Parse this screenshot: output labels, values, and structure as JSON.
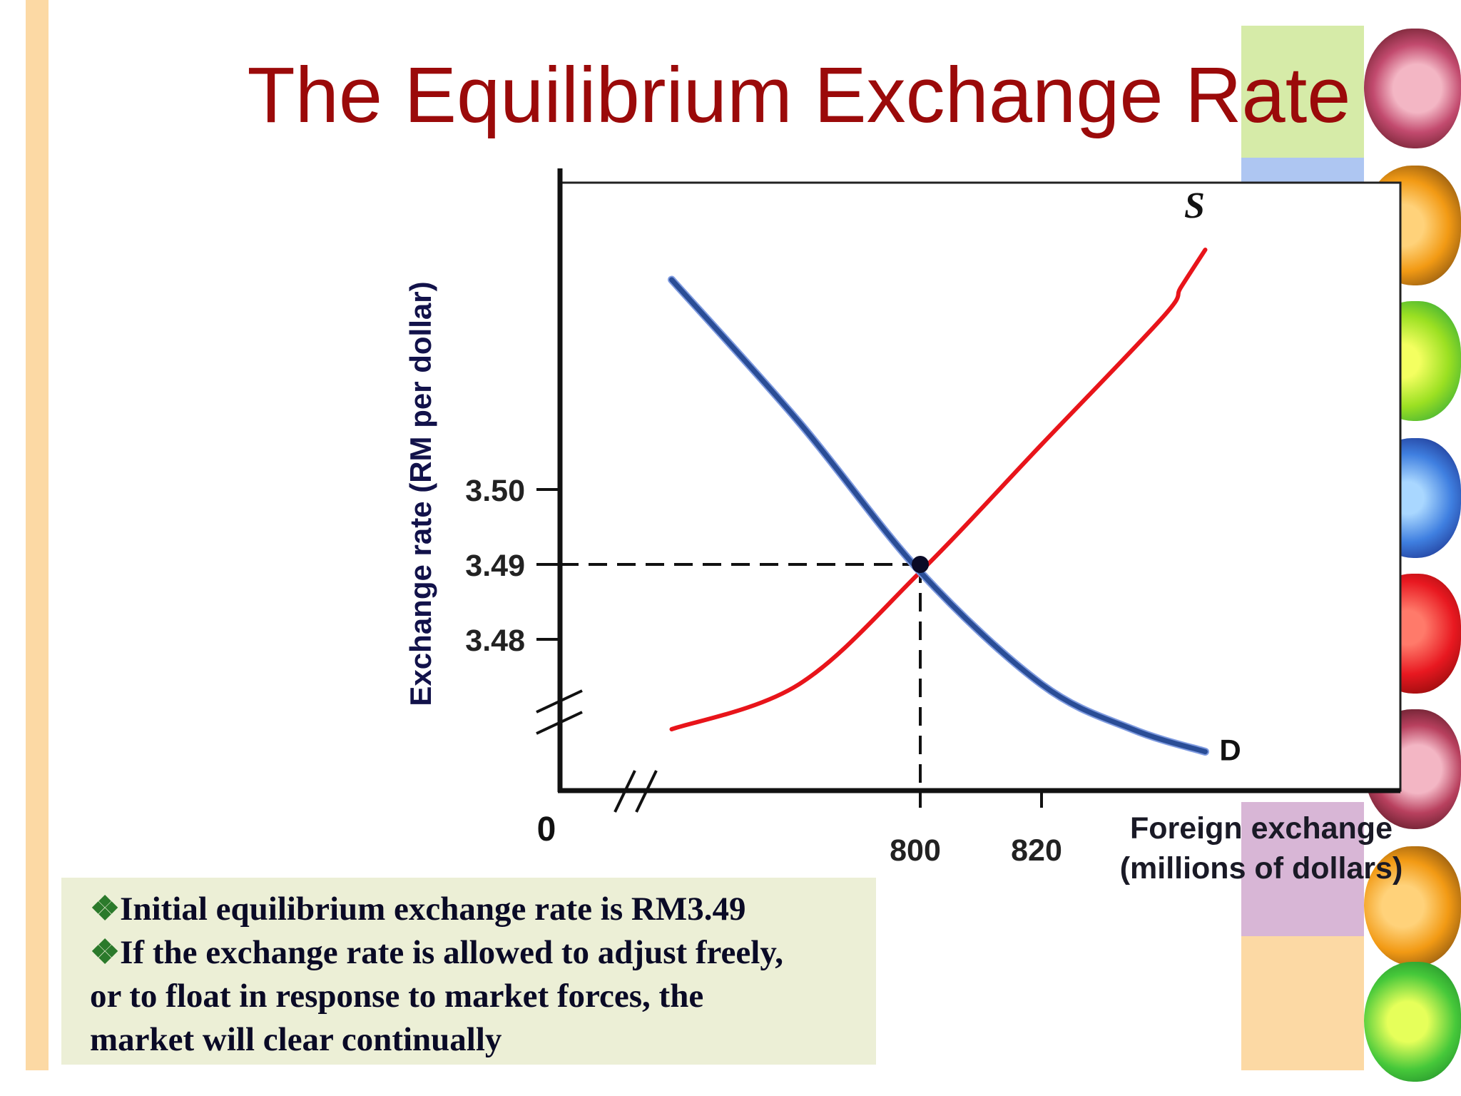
{
  "slide": {
    "title": "The Equilibrium Exchange Rate"
  },
  "chart_data": {
    "type": "line",
    "xlabel_lines": [
      "Foreign exchange",
      "(millions of dollars)"
    ],
    "ylabel": "Exchange rate (RM per dollar)",
    "origin_label": "0",
    "x_ticks": [
      {
        "value": 800,
        "label": "800"
      },
      {
        "value": 820,
        "label": "820"
      }
    ],
    "y_ticks": [
      {
        "value": 3.48,
        "label": "3.48"
      },
      {
        "value": 3.49,
        "label": "3.49"
      },
      {
        "value": 3.5,
        "label": "3.50"
      }
    ],
    "axis_breaks": {
      "x": true,
      "y": true
    },
    "series": [
      {
        "name": "S",
        "color": "#e8141a",
        "points": [
          [
            759,
            3.468
          ],
          [
            780,
            3.474
          ],
          [
            800,
            3.489
          ],
          [
            820,
            3.506
          ],
          [
            840,
            3.523
          ],
          [
            843,
            3.527
          ],
          [
            847,
            3.532
          ]
        ]
      },
      {
        "name": "D",
        "color": "#2a4d96",
        "points": [
          [
            759,
            3.528
          ],
          [
            780,
            3.509
          ],
          [
            800,
            3.489
          ],
          [
            820,
            3.474
          ],
          [
            835,
            3.468
          ],
          [
            847,
            3.465
          ]
        ]
      }
    ],
    "equilibrium": {
      "x": 800,
      "y": 3.49
    }
  },
  "info": {
    "bullets": [
      "Initial equilibrium exchange rate is RM3.49",
      "If the exchange rate is allowed to adjust freely,"
    ],
    "continuation": [
      "or to float in response to market forces, the",
      "market will clear continually"
    ],
    "bullet_glyph": "❖"
  }
}
